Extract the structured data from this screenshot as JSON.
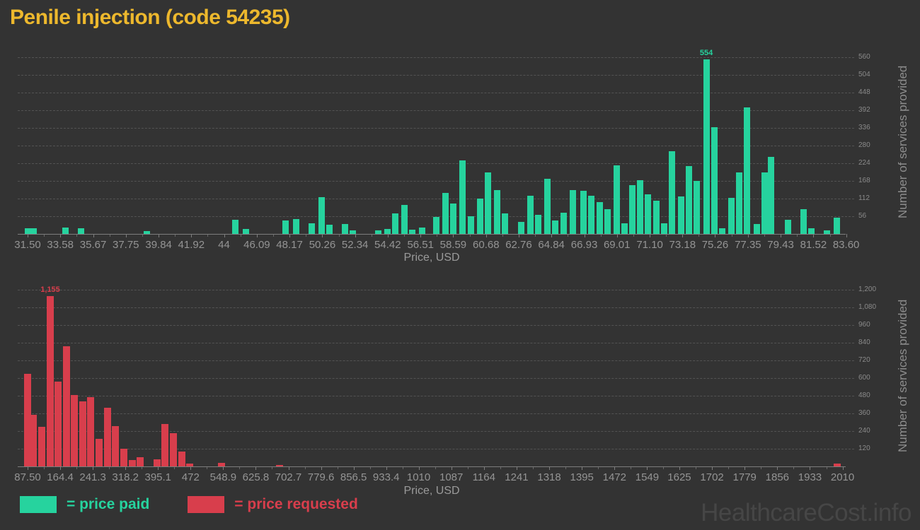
{
  "page": {
    "title": "Penile injection (code 54235)",
    "title_color": "#edb82d",
    "watermark": "HealthcareCost.info",
    "background_color": "#333333"
  },
  "legend": [
    {
      "label": "= price paid",
      "color": "#26d39e"
    },
    {
      "label": "= price requested",
      "color": "#d83e4c"
    }
  ],
  "chart_data": [
    {
      "type": "bar",
      "name": "price-paid-histogram",
      "series_name": "price paid",
      "color": "#26d39e",
      "xlabel": "Price, USD",
      "ylabel": "Number of services provided",
      "x_tick_labels": [
        "31.50",
        "33.58",
        "35.67",
        "37.75",
        "39.84",
        "41.92",
        "44",
        "46.09",
        "48.17",
        "50.26",
        "52.34",
        "54.42",
        "56.51",
        "58.59",
        "60.68",
        "62.76",
        "64.84",
        "66.93",
        "69.01",
        "71.10",
        "73.18",
        "75.26",
        "77.35",
        "79.43",
        "81.52",
        "83.60"
      ],
      "y_ticks": [
        56,
        112,
        168,
        224,
        280,
        336,
        392,
        448,
        504,
        560
      ],
      "y_tick_labels": [
        "56",
        "112",
        "168",
        "224",
        "280",
        "336",
        "392",
        "448",
        "504",
        "560"
      ],
      "x_range": [
        31.5,
        83.6
      ],
      "ylim": [
        0,
        585
      ],
      "grid": true,
      "peak_label": "554",
      "bars": [
        {
          "x": 31.5,
          "v": 18
        },
        {
          "x": 31.9,
          "v": 18
        },
        {
          "x": 33.9,
          "v": 20
        },
        {
          "x": 34.9,
          "v": 18
        },
        {
          "x": 39.1,
          "v": 9
        },
        {
          "x": 44.7,
          "v": 45
        },
        {
          "x": 45.4,
          "v": 16
        },
        {
          "x": 47.9,
          "v": 42
        },
        {
          "x": 48.6,
          "v": 48
        },
        {
          "x": 49.6,
          "v": 33
        },
        {
          "x": 50.2,
          "v": 116
        },
        {
          "x": 50.7,
          "v": 29
        },
        {
          "x": 51.7,
          "v": 31
        },
        {
          "x": 52.2,
          "v": 11
        },
        {
          "x": 53.8,
          "v": 11
        },
        {
          "x": 54.4,
          "v": 16
        },
        {
          "x": 54.9,
          "v": 65
        },
        {
          "x": 55.5,
          "v": 92
        },
        {
          "x": 56.0,
          "v": 13
        },
        {
          "x": 56.6,
          "v": 20
        },
        {
          "x": 57.5,
          "v": 54
        },
        {
          "x": 58.1,
          "v": 129
        },
        {
          "x": 58.6,
          "v": 96
        },
        {
          "x": 59.2,
          "v": 234
        },
        {
          "x": 59.7,
          "v": 56
        },
        {
          "x": 60.3,
          "v": 112
        },
        {
          "x": 60.8,
          "v": 194
        },
        {
          "x": 61.4,
          "v": 138
        },
        {
          "x": 61.9,
          "v": 65
        },
        {
          "x": 62.9,
          "v": 38
        },
        {
          "x": 63.5,
          "v": 120
        },
        {
          "x": 64.0,
          "v": 60
        },
        {
          "x": 64.6,
          "v": 174
        },
        {
          "x": 65.1,
          "v": 42
        },
        {
          "x": 65.6,
          "v": 67
        },
        {
          "x": 66.2,
          "v": 138
        },
        {
          "x": 66.9,
          "v": 136
        },
        {
          "x": 67.4,
          "v": 120
        },
        {
          "x": 67.9,
          "v": 100
        },
        {
          "x": 68.4,
          "v": 78
        },
        {
          "x": 69.0,
          "v": 217
        },
        {
          "x": 69.5,
          "v": 34
        },
        {
          "x": 70.0,
          "v": 155
        },
        {
          "x": 70.5,
          "v": 170
        },
        {
          "x": 71.0,
          "v": 126
        },
        {
          "x": 71.5,
          "v": 106
        },
        {
          "x": 72.0,
          "v": 34
        },
        {
          "x": 72.5,
          "v": 263
        },
        {
          "x": 73.1,
          "v": 119
        },
        {
          "x": 73.6,
          "v": 214
        },
        {
          "x": 74.1,
          "v": 167
        },
        {
          "x": 74.7,
          "v": 554
        },
        {
          "x": 75.2,
          "v": 338
        },
        {
          "x": 75.7,
          "v": 17
        },
        {
          "x": 76.3,
          "v": 114
        },
        {
          "x": 76.8,
          "v": 196
        },
        {
          "x": 77.3,
          "v": 402
        },
        {
          "x": 77.9,
          "v": 31
        },
        {
          "x": 78.4,
          "v": 194
        },
        {
          "x": 78.8,
          "v": 245
        },
        {
          "x": 79.9,
          "v": 45
        },
        {
          "x": 80.9,
          "v": 78
        },
        {
          "x": 81.4,
          "v": 17
        },
        {
          "x": 82.4,
          "v": 11
        },
        {
          "x": 83.0,
          "v": 51
        }
      ]
    },
    {
      "type": "bar",
      "name": "price-requested-histogram",
      "series_name": "price requested",
      "color": "#d83e4c",
      "xlabel": "Price, USD",
      "ylabel": "Number of services provided",
      "x_tick_labels": [
        "87.50",
        "164.4",
        "241.3",
        "318.2",
        "395.1",
        "472",
        "548.9",
        "625.8",
        "702.7",
        "779.6",
        "856.5",
        "933.4",
        "1010",
        "1087",
        "1164",
        "1241",
        "1318",
        "1395",
        "1472",
        "1549",
        "1625",
        "1702",
        "1779",
        "1856",
        "1933",
        "2010"
      ],
      "y_ticks": [
        120,
        240,
        360,
        480,
        600,
        720,
        840,
        960,
        1080,
        1200
      ],
      "y_tick_labels": [
        "120",
        "240",
        "360",
        "480",
        "600",
        "720",
        "840",
        "960",
        "1,080",
        "1,200"
      ],
      "x_range": [
        87.5,
        2010
      ],
      "ylim": [
        0,
        1235
      ],
      "grid": true,
      "peak_label": "1,155",
      "bars": [
        {
          "x": 87.5,
          "v": 628
        },
        {
          "x": 101,
          "v": 352
        },
        {
          "x": 121,
          "v": 267
        },
        {
          "x": 141,
          "v": 1155
        },
        {
          "x": 159,
          "v": 576
        },
        {
          "x": 179,
          "v": 814
        },
        {
          "x": 198,
          "v": 486
        },
        {
          "x": 218,
          "v": 443
        },
        {
          "x": 236,
          "v": 471
        },
        {
          "x": 256,
          "v": 186
        },
        {
          "x": 276,
          "v": 400
        },
        {
          "x": 294,
          "v": 276
        },
        {
          "x": 314,
          "v": 119
        },
        {
          "x": 334,
          "v": 43
        },
        {
          "x": 353,
          "v": 62
        },
        {
          "x": 393,
          "v": 48
        },
        {
          "x": 411,
          "v": 290
        },
        {
          "x": 431,
          "v": 224
        },
        {
          "x": 451,
          "v": 100
        },
        {
          "x": 470,
          "v": 19
        },
        {
          "x": 545,
          "v": 24
        },
        {
          "x": 682,
          "v": 10
        },
        {
          "x": 1997,
          "v": 20
        }
      ]
    }
  ]
}
